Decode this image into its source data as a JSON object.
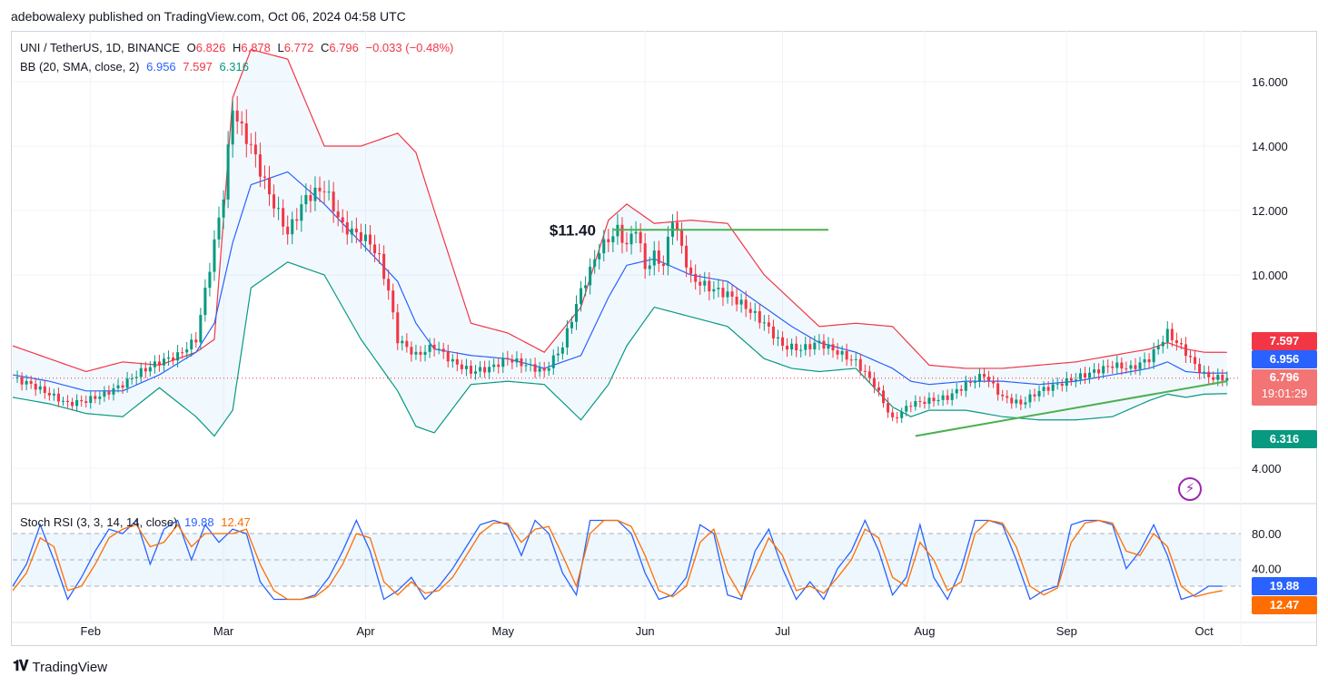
{
  "header": {
    "text": "adebowalexy published on TradingView.com, Oct 06, 2024 04:58 UTC"
  },
  "legend": {
    "symbol": "UNI / TetherUS, 1D, BINANCE",
    "open_label": "O",
    "open": "6.826",
    "high_label": "H",
    "high": "6.878",
    "low_label": "L",
    "low": "6.772",
    "close_label": "C",
    "close": "6.796",
    "change": "−0.033 (−0.48%)",
    "bb_label": "BB (20, SMA, close, 2)",
    "bb_basis": "6.956",
    "bb_upper": "7.597",
    "bb_lower": "6.316",
    "stoch_label": "Stoch RSI (3, 3, 14, 14, close)",
    "stoch_k": "19.88",
    "stoch_d": "12.47"
  },
  "price_tags": {
    "upper": "7.597",
    "basis": "6.956",
    "last": "6.796",
    "countdown": "19:01:29",
    "lower": "6.316",
    "stoch_k": "19.88",
    "stoch_d": "12.47"
  },
  "annotation": {
    "level_label": "$11.40"
  },
  "footer": {
    "brand": "TradingView"
  },
  "colors": {
    "up": "#089981",
    "down": "#f23645",
    "basis": "#2962ff",
    "upper": "#f23645",
    "lower": "#089981",
    "band_fill": "#2196f3",
    "trend": "#4caf50",
    "stoch_k": "#2962ff",
    "stoch_d": "#ff6d00"
  },
  "chart_data": [
    {
      "type": "candlestick",
      "title": "UNI / TetherUS, 1D, BINANCE",
      "y_ticks": [
        "16.000",
        "14.000",
        "12.000",
        "10.000",
        "4.000"
      ],
      "ylim": [
        3.0,
        17.5
      ],
      "x_ticks": [
        "Feb",
        "Mar",
        "Apr",
        "May",
        "Jun",
        "Jul",
        "Aug",
        "Sep",
        "Oct"
      ],
      "x_tick_days": [
        17,
        46,
        77,
        107,
        138,
        168,
        199,
        230,
        260
      ],
      "last_price": 6.796,
      "close_series_days": [
        0,
        4,
        8,
        12,
        16,
        20,
        24,
        28,
        32,
        36,
        40,
        44,
        46,
        48,
        50,
        52,
        56,
        60,
        64,
        68,
        72,
        76,
        78,
        80,
        82,
        84,
        88,
        92,
        96,
        100,
        104,
        108,
        112,
        116,
        120,
        124,
        128,
        132,
        134,
        136,
        138,
        140,
        142,
        144,
        148,
        152,
        156,
        160,
        164,
        168,
        172,
        176,
        180,
        184,
        188,
        192,
        196,
        200,
        204,
        208,
        212,
        216,
        220,
        224,
        228,
        232,
        236,
        240,
        244,
        248,
        252,
        256,
        258,
        260,
        262,
        265
      ],
      "close_series": [
        6.8,
        6.6,
        6.3,
        6.0,
        6.1,
        6.3,
        6.6,
        7.0,
        7.3,
        7.5,
        8.0,
        11.0,
        12.5,
        15.2,
        14.5,
        14.0,
        12.5,
        11.3,
        12.4,
        12.7,
        11.5,
        11.2,
        11.0,
        10.5,
        9.5,
        8.0,
        7.5,
        7.8,
        7.3,
        7.0,
        7.1,
        7.4,
        7.2,
        7.0,
        7.8,
        9.5,
        10.8,
        11.4,
        10.9,
        11.5,
        10.2,
        10.6,
        10.3,
        11.8,
        9.9,
        9.6,
        9.4,
        9.0,
        8.5,
        7.8,
        7.7,
        7.9,
        7.6,
        7.3,
        6.6,
        5.5,
        6.0,
        6.1,
        6.2,
        6.6,
        6.9,
        6.2,
        6.0,
        6.4,
        6.6,
        6.8,
        7.0,
        7.2,
        7.1,
        7.4,
        8.2,
        7.6,
        7.2,
        6.9,
        6.8,
        6.8
      ],
      "bollinger": {
        "days": [
          0,
          8,
          16,
          24,
          32,
          40,
          44,
          48,
          52,
          60,
          68,
          76,
          84,
          88,
          92,
          100,
          108,
          116,
          124,
          130,
          134,
          140,
          148,
          156,
          164,
          170,
          176,
          184,
          192,
          196,
          200,
          208,
          216,
          224,
          232,
          240,
          248,
          252,
          256,
          260,
          265
        ],
        "upper": [
          7.8,
          7.4,
          7.0,
          7.3,
          7.2,
          7.6,
          8.0,
          15.5,
          17.0,
          16.7,
          14.0,
          14.0,
          14.4,
          13.8,
          12.0,
          8.5,
          8.2,
          7.6,
          9.0,
          11.7,
          12.2,
          11.6,
          11.7,
          11.6,
          10.0,
          9.2,
          8.4,
          8.5,
          8.4,
          7.8,
          7.2,
          7.1,
          7.1,
          7.2,
          7.3,
          7.5,
          7.7,
          7.9,
          7.7,
          7.6,
          7.597
        ],
        "basis": [
          6.9,
          6.7,
          6.4,
          6.4,
          6.9,
          7.6,
          8.5,
          11.0,
          12.8,
          13.2,
          12.2,
          11.0,
          9.8,
          8.5,
          7.7,
          7.5,
          7.4,
          7.1,
          7.5,
          9.3,
          10.3,
          10.5,
          10.0,
          9.8,
          9.0,
          8.4,
          7.9,
          7.6,
          7.1,
          6.7,
          6.6,
          6.7,
          6.7,
          6.6,
          6.7,
          6.9,
          7.1,
          7.3,
          7.0,
          6.95,
          6.956
        ],
        "lower": [
          6.2,
          6.0,
          5.7,
          5.6,
          6.5,
          5.6,
          5.0,
          5.8,
          9.6,
          10.4,
          10.0,
          8.0,
          6.4,
          5.3,
          5.1,
          6.6,
          6.7,
          6.6,
          5.5,
          6.6,
          7.8,
          9.0,
          8.7,
          8.4,
          7.4,
          7.1,
          7.0,
          7.1,
          5.9,
          5.6,
          5.8,
          5.8,
          5.6,
          5.5,
          5.5,
          5.6,
          6.1,
          6.3,
          6.2,
          6.3,
          6.316
        ]
      },
      "annotations": [
        {
          "label": "$11.40",
          "type": "horizontal-level",
          "value": 11.4
        },
        {
          "type": "trendline",
          "from": [
            197,
            5.0
          ],
          "to": [
            265,
            6.7
          ]
        }
      ]
    },
    {
      "type": "line",
      "title": "Stoch RSI (3, 3, 14, 14, close)",
      "y_ticks": [
        "80.00",
        "40.00"
      ],
      "ylim": [
        0,
        100
      ],
      "bands": {
        "upper": 80,
        "middle": 50,
        "lower": 20
      },
      "series": [
        {
          "name": "K",
          "days": [
            0,
            3,
            6,
            9,
            12,
            15,
            18,
            21,
            24,
            27,
            30,
            33,
            36,
            39,
            42,
            45,
            48,
            51,
            54,
            57,
            60,
            63,
            66,
            69,
            72,
            75,
            78,
            81,
            84,
            87,
            90,
            93,
            96,
            99,
            102,
            105,
            108,
            111,
            114,
            117,
            120,
            123,
            126,
            129,
            132,
            135,
            138,
            141,
            144,
            147,
            150,
            153,
            156,
            159,
            162,
            165,
            168,
            171,
            174,
            177,
            180,
            183,
            186,
            189,
            192,
            195,
            198,
            201,
            204,
            207,
            210,
            213,
            216,
            219,
            222,
            225,
            228,
            231,
            234,
            237,
            240,
            243,
            246,
            249,
            252,
            255,
            258,
            261,
            264
          ],
          "values": [
            20,
            45,
            90,
            50,
            5,
            30,
            60,
            85,
            80,
            95,
            45,
            85,
            95,
            50,
            90,
            70,
            85,
            80,
            25,
            5,
            5,
            5,
            10,
            30,
            60,
            95,
            60,
            5,
            15,
            30,
            5,
            20,
            40,
            65,
            90,
            95,
            90,
            55,
            95,
            80,
            35,
            10,
            95,
            95,
            95,
            80,
            35,
            5,
            10,
            30,
            90,
            80,
            10,
            5,
            60,
            85,
            40,
            5,
            25,
            5,
            40,
            60,
            95,
            60,
            10,
            30,
            90,
            30,
            5,
            40,
            95,
            95,
            90,
            50,
            5,
            15,
            20,
            90,
            95,
            95,
            90,
            40,
            60,
            90,
            55,
            5,
            10,
            20,
            20
          ]
        },
        {
          "name": "D",
          "days": [
            0,
            3,
            6,
            9,
            12,
            15,
            18,
            21,
            24,
            27,
            30,
            33,
            36,
            39,
            42,
            45,
            48,
            51,
            54,
            57,
            60,
            63,
            66,
            69,
            72,
            75,
            78,
            81,
            84,
            87,
            90,
            93,
            96,
            99,
            102,
            105,
            108,
            111,
            114,
            117,
            120,
            123,
            126,
            129,
            132,
            135,
            138,
            141,
            144,
            147,
            150,
            153,
            156,
            159,
            162,
            165,
            168,
            171,
            174,
            177,
            180,
            183,
            186,
            189,
            192,
            195,
            198,
            201,
            204,
            207,
            210,
            213,
            216,
            219,
            222,
            225,
            228,
            231,
            234,
            237,
            240,
            243,
            246,
            249,
            252,
            255,
            258,
            261,
            264
          ],
          "values": [
            15,
            35,
            75,
            65,
            15,
            20,
            45,
            75,
            85,
            90,
            65,
            70,
            90,
            65,
            80,
            80,
            80,
            85,
            45,
            15,
            5,
            5,
            8,
            20,
            45,
            80,
            75,
            25,
            10,
            25,
            12,
            15,
            30,
            55,
            80,
            92,
            92,
            70,
            85,
            88,
            55,
            20,
            80,
            95,
            95,
            88,
            55,
            15,
            8,
            20,
            70,
            85,
            35,
            8,
            40,
            75,
            55,
            15,
            20,
            12,
            30,
            50,
            85,
            75,
            30,
            20,
            70,
            50,
            15,
            25,
            80,
            95,
            92,
            65,
            20,
            10,
            18,
            70,
            92,
            95,
            92,
            60,
            55,
            80,
            65,
            20,
            8,
            12,
            15
          ]
        }
      ]
    }
  ]
}
